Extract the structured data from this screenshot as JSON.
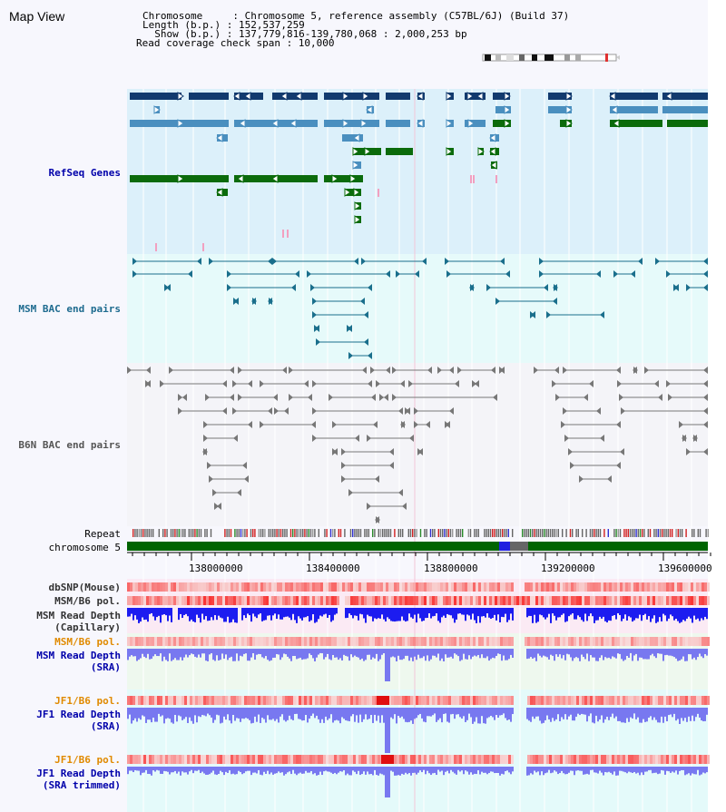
{
  "title": "Map View",
  "info": {
    "line1": "Chromosome     : Chromosome 5, reference assembly (C57BL/6J) (Build 37)",
    "line2": "Length (b.p.) : 152,537,259",
    "line3": "  Show (b.p.) : 137,779,816-139,780,068 : 2,000,253 bp",
    "line4": "Read coverage check span : 10,000"
  },
  "tracks": {
    "refseq": "RefSeq Genes",
    "msm_bac": "MSM BAC end pairs",
    "b6n_bac": "B6N BAC end pairs",
    "repeat": "Repeat",
    "chromosome": "chromosome 5",
    "dbsnp": "dbSNP(Mouse)",
    "msm_b6_pol_1": "MSM/B6 pol.",
    "msm_read_depth_cap_1": "MSM Read Depth",
    "msm_read_depth_cap_2": "(Capillary)",
    "msm_b6_pol_2": "MSM/B6 pol.",
    "msm_read_depth_sra_1": "MSM Read Depth",
    "msm_read_depth_sra_2": "(SRA)",
    "jf1_b6_pol_1": "JF1/B6 pol.",
    "jf1_read_depth_sra_1": "JF1 Read Depth",
    "jf1_read_depth_sra_2": "(SRA)",
    "jf1_b6_pol_2": "JF1/B6 pol.",
    "jf1_read_depth_trim_1": "JF1 Read Depth",
    "jf1_read_depth_trim_2": "(SRA trimmed)"
  },
  "axis": {
    "ticks": [
      "138000000",
      "138400000",
      "138800000",
      "139200000",
      "139600000"
    ]
  },
  "colors": {
    "refseq_bg": "#dcf0fa",
    "msm_bac_bg": "#e6fafa",
    "b6n_bg": "#f4f4f8",
    "navy": "#123a6e",
    "steel": "#4a8fbf",
    "green": "#0b6b0b",
    "teal_line": "#1a6f8c",
    "grey_line": "#777777",
    "chrom_green": "#006400",
    "depth_blue": "#1c1cf0",
    "depth_light": "#7878f0",
    "pol_red": "#f03c3c",
    "pol_pink": "#f8b8b8"
  }
}
